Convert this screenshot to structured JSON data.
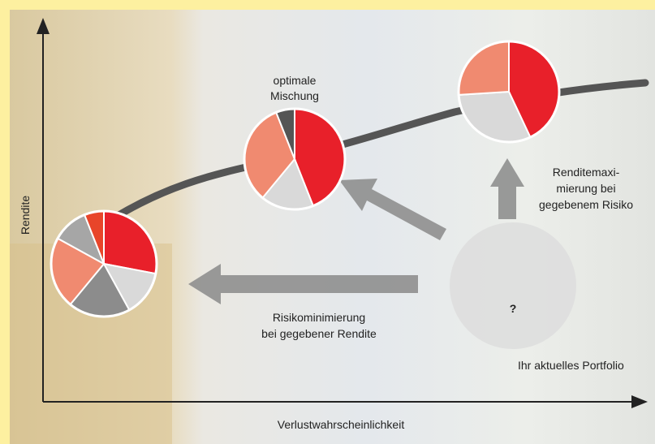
{
  "axes": {
    "y_label": "Rendite",
    "x_label": "Verlustwahrscheinlichkeit"
  },
  "annotations": {
    "optimal": [
      "optimale",
      "Mischung"
    ],
    "max_return": [
      "Renditemaxi-",
      "mierung bei",
      "gegebenem Risiko"
    ],
    "min_risk": [
      "Risikominimierung",
      "bei gegebener Rendite"
    ],
    "current": "Ihr aktuelles Portfolio",
    "question": "?"
  },
  "pies": [
    {
      "slices": [
        {
          "value": 28,
          "color": "#e8202a"
        },
        {
          "value": 14,
          "color": "#d9d9d9"
        },
        {
          "value": 19,
          "color": "#8c8c8c"
        },
        {
          "value": 22,
          "color": "#f08a70"
        },
        {
          "value": 11,
          "color": "#a6a6a6"
        },
        {
          "value": 6,
          "color": "#e8452a"
        }
      ]
    },
    {
      "slices": [
        {
          "value": 44,
          "color": "#e8202a"
        },
        {
          "value": 17,
          "color": "#d9d9d9"
        },
        {
          "value": 33,
          "color": "#f08a70"
        },
        {
          "value": 6,
          "color": "#555555"
        }
      ]
    },
    {
      "slices": [
        {
          "value": 43,
          "color": "#e8202a"
        },
        {
          "value": 31,
          "color": "#d9d9d9"
        },
        {
          "value": 26,
          "color": "#f08a70"
        }
      ]
    }
  ]
}
